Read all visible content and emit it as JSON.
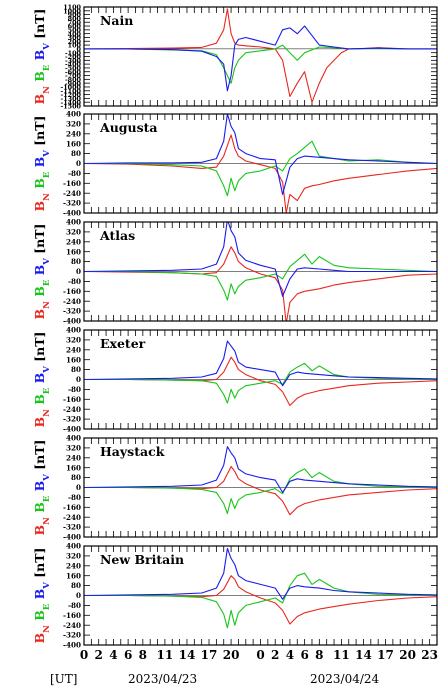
{
  "colors": {
    "north": "#e8281e",
    "east": "#19c519",
    "vertical": "#1a1aee",
    "axis": "#000000"
  },
  "chart_data": [
    {
      "type": "line",
      "station": "Nain",
      "ylabel": {
        "n": "B",
        "n_sub": "N",
        "e": "B",
        "e_sub": "E",
        "v": "B",
        "v_sub": "V",
        "unit": "[nT]"
      },
      "ylim": [
        -1500,
        1100
      ],
      "yticks": [
        "1100",
        "1000",
        "900",
        "800",
        "700",
        "600",
        "500",
        "400",
        "300",
        "200",
        "100",
        "0",
        "-100",
        "-200",
        "-300",
        "-400",
        "-500",
        "-600",
        "-700",
        "-800",
        "-900",
        "-1000",
        "-1100",
        "-1200",
        "-1300",
        "-1400",
        "-1500"
      ],
      "series": [
        {
          "component": "BN",
          "x": [
            0,
            6,
            12,
            16,
            18,
            19,
            19.5,
            20,
            20.5,
            21,
            22,
            24,
            26,
            27,
            28,
            29,
            30,
            31,
            32,
            33,
            34,
            35,
            36,
            38,
            40,
            44,
            48
          ],
          "values": [
            0,
            10,
            20,
            40,
            150,
            500,
            1050,
            400,
            150,
            100,
            80,
            50,
            0,
            -300,
            -1250,
            -900,
            -600,
            -1400,
            -900,
            -500,
            -300,
            -100,
            0,
            10,
            30,
            0,
            0
          ]
        },
        {
          "component": "BE",
          "x": [
            0,
            6,
            12,
            16,
            18,
            19,
            20,
            20.5,
            21,
            22,
            24,
            26,
            27,
            28,
            29,
            30,
            32,
            34,
            36,
            40,
            44,
            48
          ],
          "values": [
            0,
            0,
            -30,
            -50,
            -150,
            -500,
            -900,
            -500,
            -300,
            -100,
            -50,
            0,
            100,
            -100,
            -300,
            -100,
            50,
            30,
            0,
            10,
            0,
            0
          ]
        },
        {
          "component": "BV",
          "x": [
            0,
            6,
            12,
            16,
            18,
            19,
            19.5,
            20,
            20.5,
            21,
            22,
            24,
            26,
            27,
            28,
            29,
            30,
            31,
            32,
            34,
            36,
            40,
            44,
            48
          ],
          "values": [
            0,
            0,
            -20,
            -60,
            -200,
            -400,
            -1100,
            -700,
            100,
            250,
            300,
            200,
            100,
            500,
            550,
            400,
            600,
            350,
            100,
            50,
            0,
            20,
            0,
            0
          ]
        }
      ]
    },
    {
      "type": "line",
      "station": "Augusta",
      "ylabel": {
        "n": "B",
        "n_sub": "N",
        "e": "B",
        "e_sub": "E",
        "v": "B",
        "v_sub": "V",
        "unit": "[nT]"
      },
      "ylim": [
        -400,
        400
      ],
      "yticks": [
        "400",
        "320",
        "240",
        "160",
        "80",
        "0",
        "-80",
        "-160",
        "-240",
        "-320",
        "-400"
      ],
      "series": [
        {
          "component": "BN",
          "x": [
            0,
            6,
            12,
            16,
            18,
            19,
            20,
            20.5,
            21,
            22,
            24,
            26,
            27,
            27.5,
            28,
            29,
            30,
            31,
            32,
            34,
            36,
            40,
            44,
            48
          ],
          "values": [
            0,
            -5,
            -20,
            -40,
            -30,
            60,
            230,
            120,
            60,
            20,
            -10,
            -40,
            -150,
            -400,
            -250,
            -300,
            -200,
            -180,
            -170,
            -140,
            -120,
            -90,
            -60,
            -40
          ]
        },
        {
          "component": "BE",
          "x": [
            0,
            6,
            12,
            16,
            18,
            19,
            19.5,
            20,
            20.5,
            21,
            22,
            24,
            26,
            27,
            28,
            29,
            30,
            31,
            32,
            34,
            36,
            40,
            44,
            48
          ],
          "values": [
            0,
            0,
            -10,
            -20,
            -60,
            -180,
            -260,
            -120,
            -220,
            -140,
            -80,
            -60,
            -20,
            -60,
            40,
            80,
            130,
            180,
            60,
            40,
            20,
            30,
            10,
            0
          ]
        },
        {
          "component": "BV",
          "x": [
            0,
            6,
            12,
            16,
            18,
            19,
            19.5,
            20,
            20.5,
            21,
            22,
            24,
            26,
            27,
            28,
            29,
            30,
            32,
            34,
            36,
            40,
            44,
            48
          ],
          "values": [
            0,
            5,
            5,
            10,
            40,
            180,
            400,
            300,
            250,
            120,
            80,
            40,
            30,
            -250,
            -30,
            40,
            60,
            50,
            40,
            30,
            20,
            10,
            0
          ]
        }
      ]
    },
    {
      "type": "line",
      "station": "Atlas",
      "ylabel": {
        "n": "B",
        "n_sub": "N",
        "e": "B",
        "e_sub": "E",
        "v": "B",
        "v_sub": "V",
        "unit": "[nT]"
      },
      "ylim": [
        -400,
        400
      ],
      "yticks": [
        "400",
        "320",
        "240",
        "160",
        "80",
        "0",
        "-80",
        "-160",
        "-240",
        "-320",
        "-400"
      ],
      "series": [
        {
          "component": "BN",
          "x": [
            0,
            6,
            12,
            16,
            18,
            19,
            20,
            20.5,
            21,
            22,
            24,
            26,
            27,
            27.5,
            28,
            29,
            30,
            32,
            34,
            36,
            40,
            44,
            48
          ],
          "values": [
            0,
            -5,
            -10,
            -20,
            -10,
            60,
            200,
            150,
            80,
            30,
            -20,
            -50,
            -150,
            -420,
            -250,
            -180,
            -160,
            -140,
            -110,
            -90,
            -60,
            -30,
            -20
          ]
        },
        {
          "component": "BE",
          "x": [
            0,
            6,
            12,
            16,
            18,
            19,
            19.5,
            20,
            20.5,
            21,
            22,
            24,
            26,
            27,
            28,
            29,
            30,
            31,
            32,
            34,
            36,
            40,
            44,
            48
          ],
          "values": [
            0,
            0,
            -10,
            -20,
            -40,
            -150,
            -230,
            -100,
            -180,
            -120,
            -70,
            -50,
            -20,
            -60,
            40,
            90,
            140,
            60,
            120,
            50,
            30,
            20,
            10,
            0
          ]
        },
        {
          "component": "BV",
          "x": [
            0,
            6,
            12,
            16,
            18,
            19,
            19.5,
            20,
            20.5,
            21,
            22,
            24,
            26,
            27,
            28,
            29,
            30,
            32,
            34,
            36,
            40,
            44,
            48
          ],
          "values": [
            0,
            5,
            10,
            20,
            60,
            200,
            420,
            330,
            280,
            150,
            90,
            50,
            20,
            -200,
            -60,
            20,
            30,
            20,
            10,
            0,
            0,
            0,
            0
          ]
        }
      ]
    },
    {
      "type": "line",
      "station": "Exeter",
      "ylabel": {
        "n": "B",
        "n_sub": "N",
        "e": "B",
        "e_sub": "E",
        "v": "B",
        "v_sub": "V",
        "unit": "[nT]"
      },
      "ylim": [
        -400,
        400
      ],
      "yticks": [
        "400",
        "320",
        "240",
        "160",
        "80",
        "0",
        "-80",
        "-160",
        "-240",
        "-320",
        "-400"
      ],
      "series": [
        {
          "component": "BN",
          "x": [
            0,
            6,
            12,
            16,
            18,
            19,
            20,
            20.5,
            21,
            22,
            24,
            26,
            27,
            28,
            29,
            30,
            32,
            34,
            36,
            40,
            44,
            48
          ],
          "values": [
            0,
            0,
            -5,
            -10,
            0,
            60,
            180,
            140,
            80,
            40,
            -10,
            -40,
            -100,
            -210,
            -150,
            -120,
            -90,
            -70,
            -50,
            -30,
            -20,
            -10
          ]
        },
        {
          "component": "BE",
          "x": [
            0,
            6,
            12,
            16,
            18,
            19,
            19.5,
            20,
            20.5,
            21,
            22,
            24,
            26,
            27,
            28,
            29,
            30,
            31,
            32,
            34,
            36,
            40,
            44,
            48
          ],
          "values": [
            0,
            0,
            -5,
            -10,
            -30,
            -120,
            -190,
            -80,
            -150,
            -90,
            -50,
            -30,
            -10,
            -40,
            60,
            100,
            130,
            70,
            110,
            40,
            20,
            10,
            5,
            0
          ]
        },
        {
          "component": "BV",
          "x": [
            0,
            6,
            12,
            16,
            18,
            19,
            19.5,
            20,
            20.5,
            21,
            22,
            24,
            26,
            27,
            28,
            29,
            30,
            32,
            34,
            36,
            40,
            44,
            48
          ],
          "values": [
            0,
            5,
            10,
            20,
            50,
            170,
            310,
            270,
            230,
            140,
            100,
            80,
            60,
            -50,
            40,
            60,
            50,
            40,
            30,
            20,
            15,
            10,
            5
          ]
        }
      ]
    },
    {
      "type": "line",
      "station": "Haystack",
      "ylabel": {
        "n": "B",
        "n_sub": "N",
        "e": "B",
        "e_sub": "E",
        "v": "B",
        "v_sub": "V",
        "unit": "[nT]"
      },
      "ylim": [
        -400,
        400
      ],
      "yticks": [
        "400",
        "320",
        "240",
        "160",
        "80",
        "0",
        "-80",
        "-160",
        "-240",
        "-320",
        "-400"
      ],
      "series": [
        {
          "component": "BN",
          "x": [
            0,
            6,
            12,
            16,
            18,
            19,
            20,
            20.5,
            21,
            22,
            24,
            26,
            27,
            28,
            29,
            30,
            32,
            34,
            36,
            40,
            44,
            48
          ],
          "values": [
            0,
            0,
            -5,
            -10,
            0,
            50,
            170,
            130,
            70,
            30,
            -20,
            -50,
            -110,
            -220,
            -160,
            -130,
            -100,
            -80,
            -60,
            -40,
            -20,
            -10
          ]
        },
        {
          "component": "BE",
          "x": [
            0,
            6,
            12,
            16,
            18,
            19,
            19.5,
            20,
            20.5,
            21,
            22,
            24,
            26,
            27,
            28,
            29,
            30,
            31,
            32,
            34,
            36,
            40,
            44,
            48
          ],
          "values": [
            0,
            0,
            -5,
            -15,
            -40,
            -130,
            -210,
            -90,
            -170,
            -100,
            -60,
            -40,
            -10,
            -50,
            70,
            120,
            150,
            80,
            120,
            50,
            30,
            10,
            5,
            0
          ]
        },
        {
          "component": "BV",
          "x": [
            0,
            6,
            12,
            16,
            18,
            19,
            19.5,
            20,
            20.5,
            21,
            22,
            24,
            26,
            27,
            28,
            29,
            30,
            32,
            34,
            36,
            40,
            44,
            48
          ],
          "values": [
            0,
            5,
            10,
            20,
            60,
            180,
            330,
            280,
            240,
            150,
            110,
            80,
            60,
            -40,
            50,
            70,
            60,
            50,
            40,
            30,
            20,
            10,
            5
          ]
        }
      ]
    },
    {
      "type": "line",
      "station": "New Britain",
      "ylabel": {
        "n": "B",
        "n_sub": "N",
        "e": "B",
        "e_sub": "E",
        "v": "B",
        "v_sub": "V",
        "unit": "[nT]"
      },
      "ylim": [
        -400,
        400
      ],
      "yticks": [
        "400",
        "320",
        "240",
        "160",
        "80",
        "0",
        "-80",
        "-160",
        "-240",
        "-320",
        "-400"
      ],
      "series": [
        {
          "component": "BN",
          "x": [
            0,
            6,
            12,
            16,
            18,
            19,
            20,
            20.5,
            21,
            22,
            24,
            26,
            27,
            28,
            29,
            30,
            32,
            34,
            36,
            40,
            44,
            48
          ],
          "values": [
            0,
            0,
            -5,
            -10,
            0,
            50,
            160,
            130,
            70,
            30,
            -20,
            -60,
            -120,
            -230,
            -170,
            -140,
            -110,
            -90,
            -70,
            -40,
            -20,
            -10
          ]
        },
        {
          "component": "BE",
          "x": [
            0,
            6,
            12,
            16,
            18,
            19,
            19.5,
            20,
            20.5,
            21,
            22,
            24,
            26,
            27,
            28,
            29,
            30,
            31,
            32,
            34,
            36,
            40,
            44,
            48
          ],
          "values": [
            0,
            0,
            -5,
            -15,
            -50,
            -150,
            -260,
            -120,
            -240,
            -140,
            -80,
            -50,
            -20,
            -60,
            80,
            160,
            180,
            90,
            130,
            60,
            30,
            10,
            5,
            0
          ]
        },
        {
          "component": "BV",
          "x": [
            0,
            6,
            12,
            16,
            18,
            19,
            19.5,
            20,
            20.5,
            21,
            22,
            24,
            26,
            27,
            28,
            29,
            30,
            32,
            34,
            36,
            40,
            44,
            48
          ],
          "values": [
            0,
            5,
            10,
            20,
            60,
            180,
            380,
            300,
            250,
            160,
            120,
            90,
            60,
            -30,
            60,
            80,
            70,
            60,
            40,
            30,
            20,
            10,
            5
          ]
        }
      ]
    }
  ],
  "x_axis": {
    "ticks_day1": [
      "0",
      "2",
      "4",
      "6",
      "8",
      "11",
      "14",
      "17",
      "20"
    ],
    "ticks_day2": [
      "0",
      "2",
      "4",
      "6",
      "8",
      "11",
      "14",
      "17",
      "20",
      "23"
    ],
    "ut_label": "[UT]",
    "date1": "2023/04/23",
    "date2": "2023/04/24"
  }
}
